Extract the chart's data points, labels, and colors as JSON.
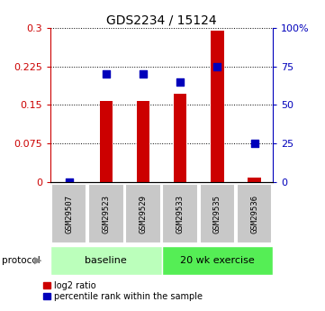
{
  "title": "GDS2234 / 15124",
  "samples": [
    "GSM29507",
    "GSM29523",
    "GSM29529",
    "GSM29533",
    "GSM29535",
    "GSM29536"
  ],
  "log2_ratio": [
    0.0,
    0.158,
    0.158,
    0.172,
    0.295,
    0.008
  ],
  "percentile": [
    0.0,
    70.0,
    70.0,
    65.0,
    75.0,
    25.0
  ],
  "bar_color": "#cc0000",
  "dot_color": "#0000bb",
  "ylim_left": [
    0,
    0.3
  ],
  "ylim_right": [
    0,
    100
  ],
  "yticks_left": [
    0,
    0.075,
    0.15,
    0.225,
    0.3
  ],
  "yticks_right": [
    0,
    25,
    50,
    75,
    100
  ],
  "ytick_labels_left": [
    "0",
    "0.075",
    "0.15",
    "0.225",
    "0.3"
  ],
  "ytick_labels_right": [
    "0",
    "25",
    "50",
    "75",
    "100%"
  ],
  "protocol_labels": [
    "baseline",
    "20 wk exercise"
  ],
  "baseline_color": "#bbffbb",
  "exercise_color": "#55ee55",
  "label_color_left": "#cc0000",
  "label_color_right": "#0000bb",
  "bar_width": 0.35,
  "dot_size": 40,
  "gray_box_color": "#c8c8c8"
}
